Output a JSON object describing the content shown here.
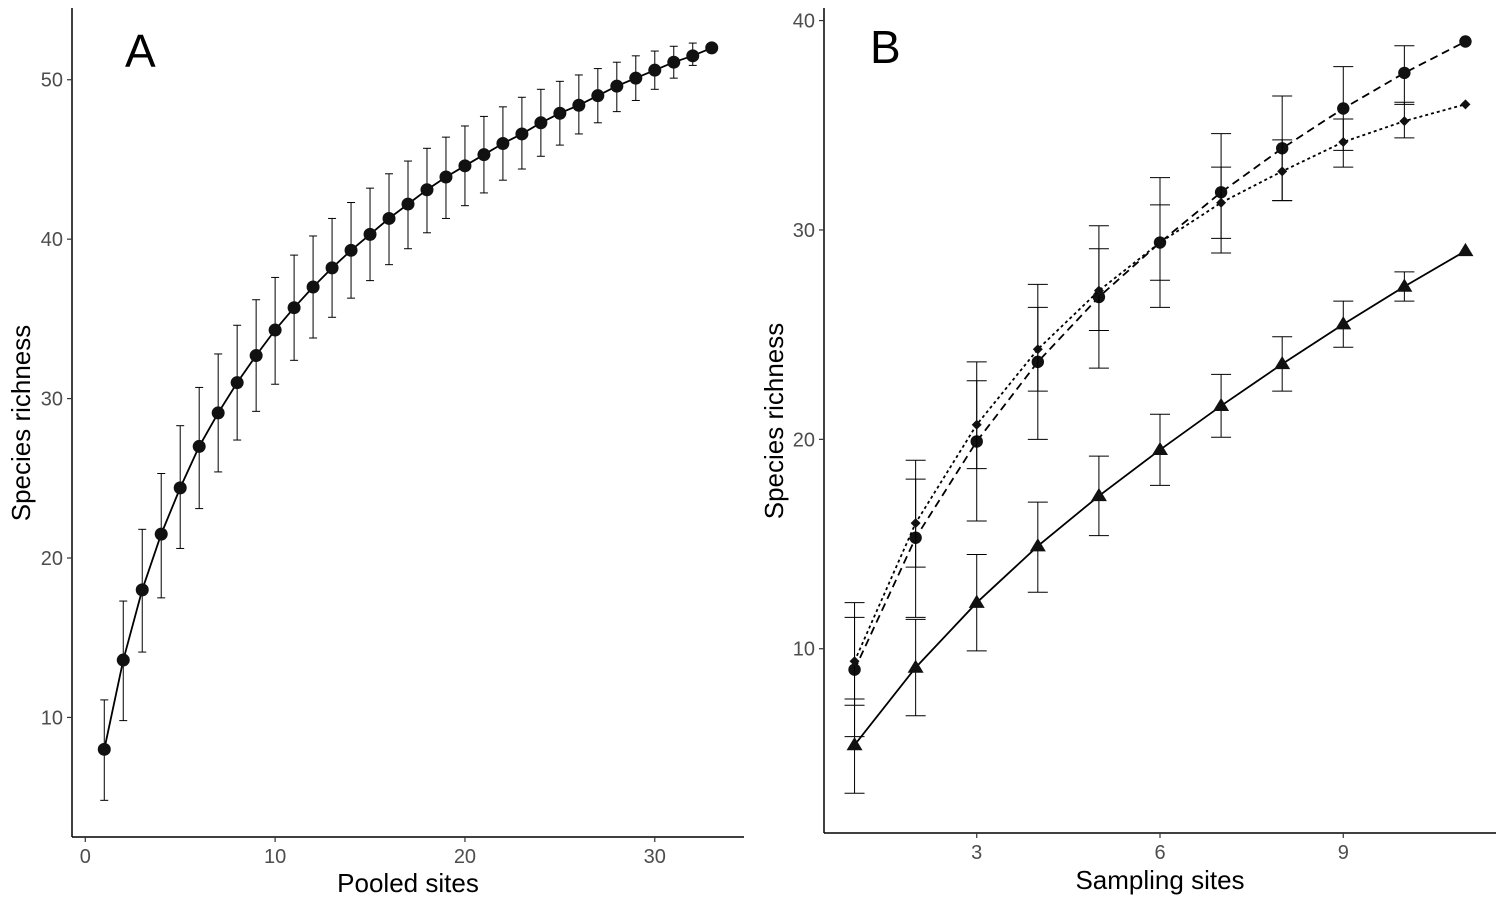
{
  "chart_data": [
    {
      "type": "line",
      "panel_label": "A",
      "xlabel": "Pooled sites",
      "ylabel": "Species richness",
      "xlim": [
        -0.7,
        34.7
      ],
      "ylim": [
        2.5,
        54.5
      ],
      "x_ticks": [
        0,
        10,
        20,
        30
      ],
      "y_ticks": [
        10,
        20,
        30,
        40,
        50
      ],
      "grid": false,
      "series": [
        {
          "marker": "circle",
          "line_style": "solid",
          "x": [
            1,
            2,
            3,
            4,
            5,
            6,
            7,
            8,
            9,
            10,
            11,
            12,
            13,
            14,
            15,
            16,
            17,
            18,
            19,
            20,
            21,
            22,
            23,
            24,
            25,
            26,
            27,
            28,
            29,
            30,
            31,
            32,
            33
          ],
          "values": [
            8.0,
            13.6,
            18.0,
            21.5,
            24.4,
            27.0,
            29.1,
            31.0,
            32.7,
            34.3,
            35.7,
            37.0,
            38.2,
            39.3,
            40.3,
            41.3,
            42.2,
            43.1,
            43.9,
            44.6,
            45.3,
            46.0,
            46.6,
            47.3,
            47.9,
            48.4,
            49.0,
            49.6,
            50.1,
            50.6,
            51.1,
            51.5,
            52.0
          ],
          "err_low": [
            4.8,
            9.8,
            14.1,
            17.5,
            20.6,
            23.1,
            25.4,
            27.4,
            29.2,
            30.9,
            32.4,
            33.8,
            35.1,
            36.3,
            37.4,
            38.4,
            39.4,
            40.4,
            41.3,
            42.1,
            42.9,
            43.7,
            44.4,
            45.2,
            45.9,
            46.6,
            47.3,
            48.0,
            48.7,
            49.4,
            50.1,
            50.9,
            52.0
          ],
          "err_high": [
            11.1,
            17.3,
            21.8,
            25.3,
            28.3,
            30.7,
            32.8,
            34.6,
            36.2,
            37.6,
            39.0,
            40.2,
            41.3,
            42.3,
            43.2,
            44.1,
            44.9,
            45.7,
            46.4,
            47.1,
            47.7,
            48.3,
            48.9,
            49.4,
            49.9,
            50.3,
            50.7,
            51.1,
            51.5,
            51.8,
            52.1,
            52.3,
            52.0
          ]
        }
      ]
    },
    {
      "type": "line",
      "panel_label": "B",
      "xlabel": "Sampling sites",
      "ylabel": "Species richness",
      "xlim": [
        0.5,
        11.5
      ],
      "ylim": [
        1.2,
        40.6
      ],
      "x_ticks": [
        3,
        6,
        9
      ],
      "y_ticks": [
        10,
        20,
        30,
        40
      ],
      "grid": false,
      "series": [
        {
          "marker": "circle",
          "line_style": "dashed",
          "x": [
            1,
            2,
            3,
            4,
            5,
            6,
            7,
            8,
            9,
            10,
            11
          ],
          "values": [
            9.0,
            15.3,
            19.9,
            23.7,
            26.8,
            29.4,
            31.8,
            33.9,
            35.8,
            37.5,
            39.0
          ],
          "err_low": [
            5.8,
            11.5,
            16.1,
            20.0,
            23.4,
            26.3,
            28.9,
            31.4,
            33.8,
            36.0,
            39.0
          ],
          "err_high": [
            12.2,
            19.0,
            23.7,
            27.4,
            30.2,
            32.5,
            34.6,
            36.4,
            37.8,
            38.8,
            39.0
          ]
        },
        {
          "marker": "diamond",
          "line_style": "dotted",
          "x": [
            1,
            2,
            3,
            4,
            5,
            6,
            7,
            8,
            9,
            10,
            11
          ],
          "values": [
            9.4,
            16.0,
            20.7,
            24.3,
            27.1,
            29.4,
            31.3,
            32.8,
            34.2,
            35.2,
            36.0
          ],
          "err_low": [
            7.3,
            13.9,
            18.6,
            22.3,
            25.2,
            27.6,
            29.6,
            31.4,
            33.0,
            34.4,
            36.0
          ],
          "err_high": [
            11.5,
            18.1,
            22.8,
            26.3,
            29.1,
            31.2,
            33.0,
            34.3,
            35.3,
            36.1,
            36.0
          ]
        },
        {
          "marker": "triangle",
          "line_style": "solid",
          "x": [
            1,
            2,
            3,
            4,
            5,
            6,
            7,
            8,
            9,
            10,
            11
          ],
          "values": [
            5.4,
            9.1,
            12.2,
            14.9,
            17.3,
            19.5,
            21.6,
            23.6,
            25.5,
            27.3,
            29.0
          ],
          "err_low": [
            3.1,
            6.8,
            9.9,
            12.7,
            15.4,
            17.8,
            20.1,
            22.3,
            24.4,
            26.6,
            29.0
          ],
          "err_high": [
            7.6,
            11.4,
            14.5,
            17.0,
            19.2,
            21.2,
            23.1,
            24.9,
            26.6,
            28.0,
            29.0
          ]
        }
      ]
    }
  ]
}
